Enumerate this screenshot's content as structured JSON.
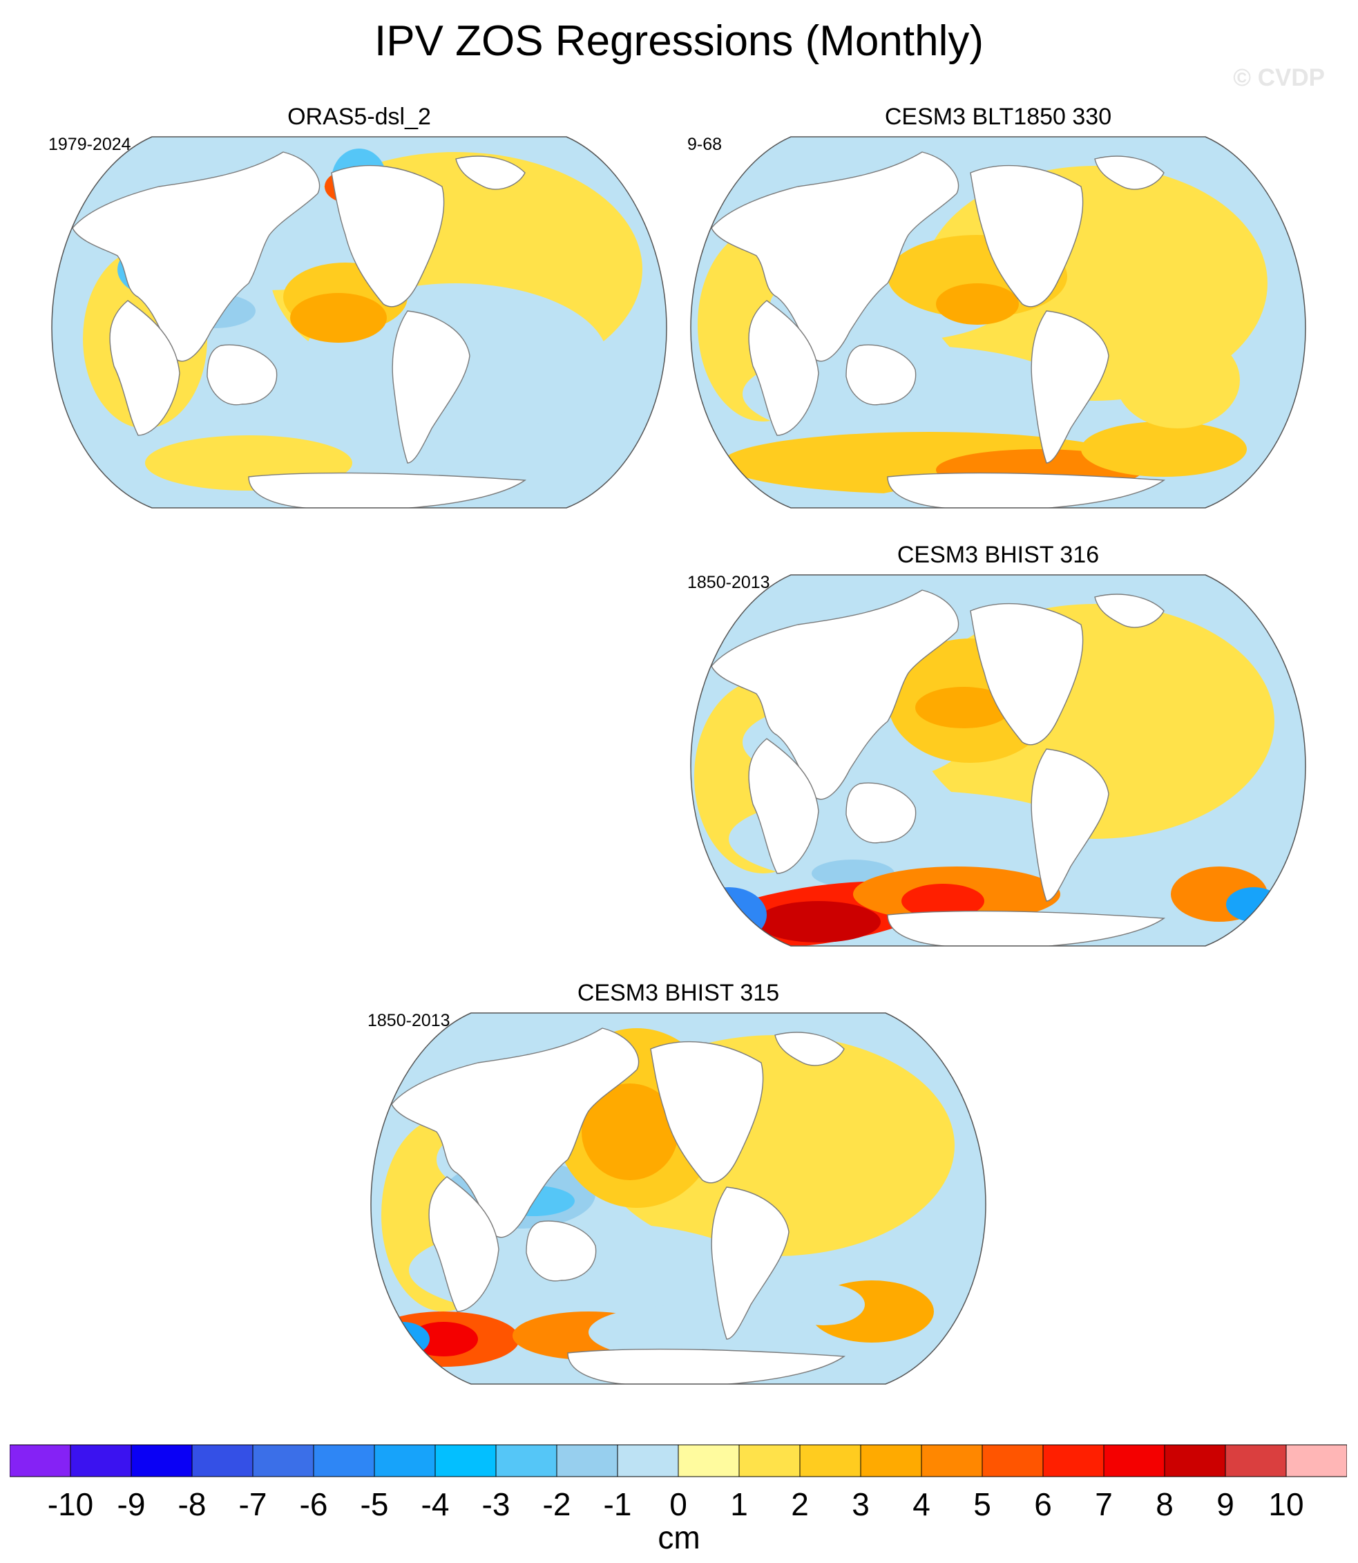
{
  "title": "IPV ZOS Regressions (Monthly)",
  "watermark": "© CVDP",
  "chart_data": {
    "type": "heatmap",
    "title": "IPV ZOS Regressions (Monthly)",
    "projection": "global map (Winkel-tripel style)",
    "variable": "ZOS regression on IPV",
    "units": "cm",
    "panels": [
      {
        "title": "ORAS5-dsl_2",
        "years": "1979-2024",
        "position": "top-left",
        "pattern": [
          {
            "region": "central/eastern tropical Pacific",
            "value": 2
          },
          {
            "region": "western tropical Pacific",
            "value": -5
          },
          {
            "region": "Gulf Stream",
            "value": 5
          },
          {
            "region": "Indian Ocean",
            "value": -1
          },
          {
            "region": "Southern Ocean",
            "value": 1
          }
        ]
      },
      {
        "title": "CESM3 BLT1850 330",
        "years": "9-68",
        "position": "top-right",
        "pattern": [
          {
            "region": "central/eastern tropical Pacific",
            "value": 2
          },
          {
            "region": "western tropical Pacific",
            "value": -2
          },
          {
            "region": "North Pacific",
            "value": -2
          },
          {
            "region": "Southern Ocean",
            "value": 5
          }
        ]
      },
      {
        "title": "CESM3 BHIST 316",
        "years": "1850-2013",
        "position": "middle-right",
        "pattern": [
          {
            "region": "central/eastern tropical Pacific",
            "value": 2
          },
          {
            "region": "western tropical Pacific",
            "value": -3
          },
          {
            "region": "Southern Ocean (Indian sector)",
            "value": 8
          },
          {
            "region": "Southern Ocean (south of Africa)",
            "value": -7
          }
        ]
      },
      {
        "title": "CESM3 BHIST 315",
        "years": "1850-2013",
        "position": "bottom-center",
        "pattern": [
          {
            "region": "central/eastern tropical Pacific",
            "value": 3
          },
          {
            "region": "western tropical Pacific",
            "value": -4
          },
          {
            "region": "Southern Ocean (Indian sector)",
            "value": 6
          },
          {
            "region": "Southern Ocean (south of Africa)",
            "value": -6
          }
        ]
      }
    ],
    "colorbar": {
      "label": "cm",
      "ticks": [
        "-10",
        "-9",
        "-8",
        "-7",
        "-6",
        "-5",
        "-4",
        "-3",
        "-2",
        "-1",
        "0",
        "1",
        "2",
        "3",
        "4",
        "5",
        "6",
        "7",
        "8",
        "9",
        "10"
      ],
      "colors": [
        "#8522f5",
        "#3b12f0",
        "#0a00f5",
        "#3450e6",
        "#3b6fe8",
        "#2e86f5",
        "#17a3fa",
        "#03bfff",
        "#55c6f7",
        "#97cfee",
        "#bde2f4",
        "#fffb9e",
        "#ffe24a",
        "#ffcc1f",
        "#ffaa00",
        "#ff8700",
        "#ff5500",
        "#ff1f00",
        "#f40000",
        "#cc0000",
        "#da3f3f",
        "#ffb6b6"
      ]
    }
  }
}
